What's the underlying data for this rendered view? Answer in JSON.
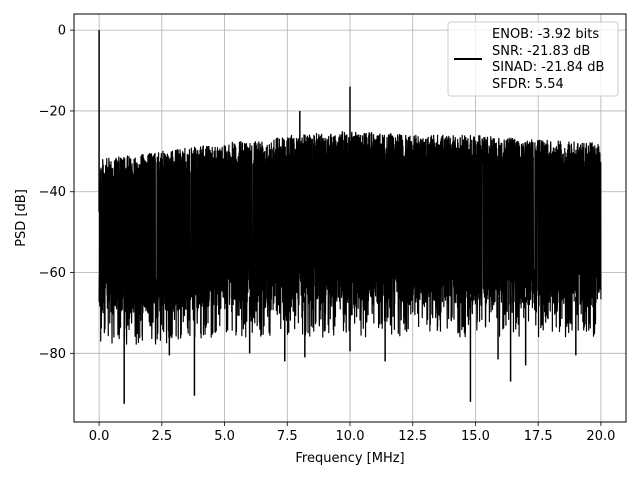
{
  "chart_data": {
    "type": "line",
    "title": "",
    "xlabel": "Frequency [MHz]",
    "ylabel": "PSD [dB]",
    "xlim": [
      -1.0,
      21.0
    ],
    "ylim": [
      -97,
      4
    ],
    "xticks": [
      0.0,
      2.5,
      5.0,
      7.5,
      10.0,
      12.5,
      15.0,
      17.5,
      20.0
    ],
    "xtick_labels": [
      "0.0",
      "2.5",
      "5.0",
      "7.5",
      "10.0",
      "12.5",
      "15.0",
      "17.5",
      "20.0"
    ],
    "yticks": [
      0,
      -20,
      -40,
      -60,
      -80
    ],
    "ytick_labels": [
      "0",
      "−20",
      "−40",
      "−60",
      "−80"
    ],
    "grid": true,
    "legend": {
      "placement": "upper right",
      "entries": [
        "ENOB: -3.92 bits",
        "SNR: -21.83 dB",
        "SINAD: -21.84 dB",
        "SFDR: 5.54"
      ]
    },
    "series": [
      {
        "color": "#000000",
        "description_values": {
          "dc_peak": {
            "x": 0.0,
            "y": 0.0
          },
          "spurs": [
            {
              "x": 8.0,
              "y": -20.0
            },
            {
              "x": 10.0,
              "y": -14.0
            }
          ],
          "upper_envelope": [
            {
              "x": 0.0,
              "y": -32
            },
            {
              "x": 2.5,
              "y": -30
            },
            {
              "x": 5.0,
              "y": -28
            },
            {
              "x": 7.5,
              "y": -26
            },
            {
              "x": 10.0,
              "y": -25
            },
            {
              "x": 12.5,
              "y": -26
            },
            {
              "x": 15.0,
              "y": -26
            },
            {
              "x": 17.5,
              "y": -27
            },
            {
              "x": 20.0,
              "y": -28
            }
          ],
          "lower_envelope": [
            {
              "x": 0.0,
              "y": -70
            },
            {
              "x": 2.5,
              "y": -70
            },
            {
              "x": 5.0,
              "y": -68
            },
            {
              "x": 7.5,
              "y": -68
            },
            {
              "x": 10.0,
              "y": -68
            },
            {
              "x": 12.5,
              "y": -68
            },
            {
              "x": 15.0,
              "y": -68
            },
            {
              "x": 17.5,
              "y": -68
            },
            {
              "x": 20.0,
              "y": -68
            }
          ],
          "deep_nulls": [
            {
              "x": 1.0,
              "y": -92.5
            },
            {
              "x": 3.8,
              "y": -90.5
            },
            {
              "x": 14.8,
              "y": -92.0
            },
            {
              "x": 16.4,
              "y": -87.0
            },
            {
              "x": 2.8,
              "y": -80.5
            },
            {
              "x": 6.0,
              "y": -80.0
            },
            {
              "x": 7.4,
              "y": -82.0
            },
            {
              "x": 8.2,
              "y": -81.0
            },
            {
              "x": 10.0,
              "y": -79.5
            },
            {
              "x": 11.4,
              "y": -82.0
            },
            {
              "x": 15.9,
              "y": -81.5
            },
            {
              "x": 17.0,
              "y": -83.0
            },
            {
              "x": 19.0,
              "y": -80.5
            }
          ]
        }
      }
    ]
  }
}
